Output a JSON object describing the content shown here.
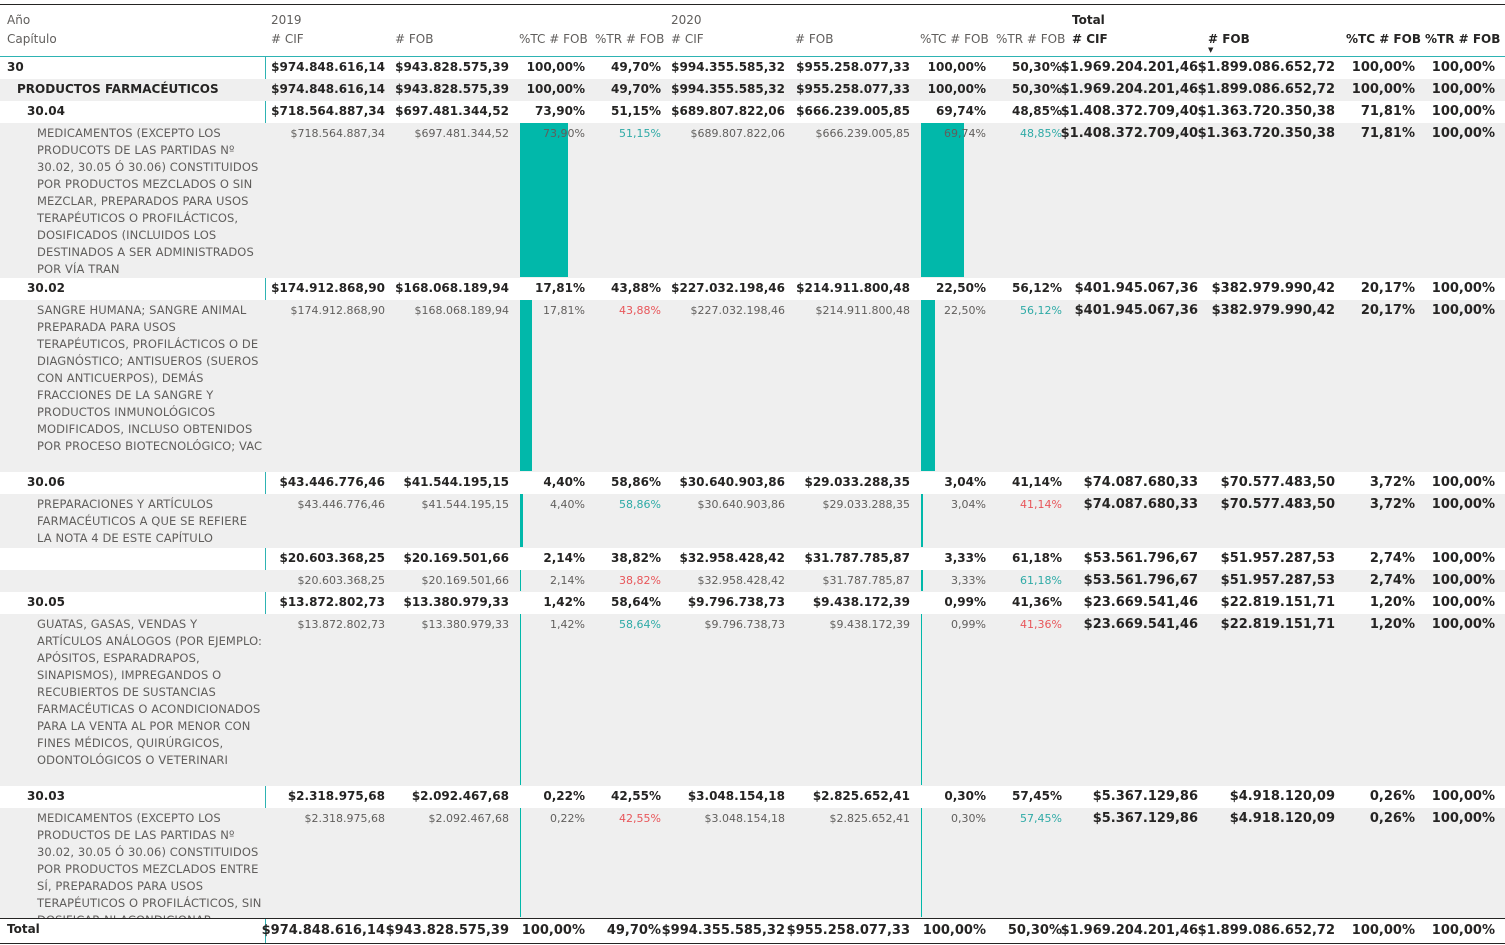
{
  "header": {
    "row_dim1": "Año",
    "row_dim2": "Capítulo",
    "groups": [
      "2019",
      "2020",
      "Total"
    ],
    "measures": [
      "# CIF",
      "# FOB",
      "%TC # FOB",
      "%TR # FOB"
    ],
    "sorted_column": "Total # FOB"
  },
  "colors": {
    "accent": "#01b8aa",
    "positive": "#2eaaa6",
    "negative": "#e8565a",
    "band": "#efefef"
  },
  "rows": [
    {
      "label": "30",
      "style": "b",
      "y2019": [
        "$974.848.616,14",
        "$943.828.575,39",
        "100,00%",
        "49,70%"
      ],
      "y2020": [
        "$994.355.585,32",
        "$955.258.077,33",
        "100,00%",
        "50,30%"
      ],
      "total": [
        "$1.969.204.201,46",
        "$1.899.086.652,72",
        "100,00%",
        "100,00%"
      ]
    },
    {
      "label": "PRODUCTOS FARMACÉUTICOS",
      "style": "b",
      "y2019": [
        "$974.848.616,14",
        "$943.828.575,39",
        "100,00%",
        "49,70%"
      ],
      "y2020": [
        "$994.355.585,32",
        "$955.258.077,33",
        "100,00%",
        "50,30%"
      ],
      "total": [
        "$1.969.204.201,46",
        "$1.899.086.652,72",
        "100,00%",
        "100,00%"
      ]
    },
    {
      "label": "30.04",
      "style": "b",
      "y2019": [
        "$718.564.887,34",
        "$697.481.344,52",
        "73,90%",
        "51,15%"
      ],
      "y2020": [
        "$689.807.822,06",
        "$666.239.005,85",
        "69,74%",
        "48,85%"
      ],
      "total": [
        "$1.408.372.709,40",
        "$1.363.720.350,38",
        "71,81%",
        "100,00%"
      ]
    },
    {
      "label": "MEDICAMENTOS (EXCEPTO LOS PRODUCOTS DE LAS PARTIDAS Nº 30.02, 30.05 Ó 30.06) CONSTITUIDOS POR PRODUCTOS MEZCLADOS O SIN MEZCLAR, PREPARADOS PARA USOS TERAPÉUTICOS O PROFILÁCTICOS, DOSIFICADOS (INCLUIDOS LOS DESTINADOS A SER ADMINISTRADOS POR VÍA TRAN",
      "style": "l",
      "tc2019_pct": 73.9,
      "tc2020_pct": 69.74,
      "y2019": [
        "$718.564.887,34",
        "$697.481.344,52",
        "73,90%",
        "51,15%"
      ],
      "y2020": [
        "$689.807.822,06",
        "$666.239.005,85",
        "69,74%",
        "48,85%"
      ],
      "total": [
        "$1.408.372.709,40",
        "$1.363.720.350,38",
        "71,81%",
        "100,00%"
      ]
    },
    {
      "label": "30.02",
      "style": "b",
      "y2019": [
        "$174.912.868,90",
        "$168.068.189,94",
        "17,81%",
        "43,88%"
      ],
      "y2020": [
        "$227.032.198,46",
        "$214.911.800,48",
        "22,50%",
        "56,12%"
      ],
      "total": [
        "$401.945.067,36",
        "$382.979.990,42",
        "20,17%",
        "100,00%"
      ]
    },
    {
      "label": "SANGRE HUMANA; SANGRE ANIMAL PREPARADA PARA USOS TERAPÉUTICOS, PROFILÁCTICOS O DE DIAGNÓSTICO; ANTISUEROS (SUEROS CON ANTICUERPOS), DEMÁS FRACCIONES DE LA SANGRE Y PRODUCTOS INMUNOLÓGICOS MODIFICADOS, INCLUSO OBTENIDOS POR PROCESO BIOTECNOLÓGICO; VAC",
      "style": "l",
      "tc2019_pct": 17.81,
      "tc2020_pct": 22.5,
      "y2019": [
        "$174.912.868,90",
        "$168.068.189,94",
        "17,81%",
        "43,88%"
      ],
      "y2020": [
        "$227.032.198,46",
        "$214.911.800,48",
        "22,50%",
        "56,12%"
      ],
      "total": [
        "$401.945.067,36",
        "$382.979.990,42",
        "20,17%",
        "100,00%"
      ]
    },
    {
      "label": "30.06",
      "style": "b",
      "y2019": [
        "$43.446.776,46",
        "$41.544.195,15",
        "4,40%",
        "58,86%"
      ],
      "y2020": [
        "$30.640.903,86",
        "$29.033.288,35",
        "3,04%",
        "41,14%"
      ],
      "total": [
        "$74.087.680,33",
        "$70.577.483,50",
        "3,72%",
        "100,00%"
      ]
    },
    {
      "label": "PREPARACIONES Y ARTÍCULOS FARMACÉUTICOS A QUE SE REFIERE LA NOTA 4 DE ESTE CAPÍTULO",
      "style": "l",
      "tc2019_pct": 4.4,
      "tc2020_pct": 3.04,
      "y2019": [
        "$43.446.776,46",
        "$41.544.195,15",
        "4,40%",
        "58,86%"
      ],
      "y2020": [
        "$30.640.903,86",
        "$29.033.288,35",
        "3,04%",
        "41,14%"
      ],
      "total": [
        "$74.087.680,33",
        "$70.577.483,50",
        "3,72%",
        "100,00%"
      ]
    },
    {
      "label": "",
      "style": "b",
      "y2019": [
        "$20.603.368,25",
        "$20.169.501,66",
        "2,14%",
        "38,82%"
      ],
      "y2020": [
        "$32.958.428,42",
        "$31.787.785,87",
        "3,33%",
        "61,18%"
      ],
      "total": [
        "$53.561.796,67",
        "$51.957.287,53",
        "2,74%",
        "100,00%"
      ]
    },
    {
      "label": "",
      "style": "l",
      "tc2019_pct": 2.14,
      "tc2020_pct": 3.33,
      "y2019": [
        "$20.603.368,25",
        "$20.169.501,66",
        "2,14%",
        "38,82%"
      ],
      "y2020": [
        "$32.958.428,42",
        "$31.787.785,87",
        "3,33%",
        "61,18%"
      ],
      "total": [
        "$53.561.796,67",
        "$51.957.287,53",
        "2,74%",
        "100,00%"
      ]
    },
    {
      "label": "30.05",
      "style": "b",
      "y2019": [
        "$13.872.802,73",
        "$13.380.979,33",
        "1,42%",
        "58,64%"
      ],
      "y2020": [
        "$9.796.738,73",
        "$9.438.172,39",
        "0,99%",
        "41,36%"
      ],
      "total": [
        "$23.669.541,46",
        "$22.819.151,71",
        "1,20%",
        "100,00%"
      ]
    },
    {
      "label": "GUATAS, GASAS, VENDAS Y ARTÍCULOS ANÁLOGOS (POR EJEMPLO: APÓSITOS, ESPARADRAPOS, SINAPISMOS), IMPREGANDOS O RECUBIERTOS DE SUSTANCIAS FARMACÉUTICAS O ACONDICIONADOS PARA LA VENTA AL POR MENOR CON FINES MÉDICOS, QUIRÚRGICOS, ODONTOLÓGICOS O VETERINARI",
      "style": "l",
      "tc2019_pct": 1.42,
      "tc2020_pct": 0.99,
      "y2019": [
        "$13.872.802,73",
        "$13.380.979,33",
        "1,42%",
        "58,64%"
      ],
      "y2020": [
        "$9.796.738,73",
        "$9.438.172,39",
        "0,99%",
        "41,36%"
      ],
      "total": [
        "$23.669.541,46",
        "$22.819.151,71",
        "1,20%",
        "100,00%"
      ]
    },
    {
      "label": "30.03",
      "style": "b",
      "y2019": [
        "$2.318.975,68",
        "$2.092.467,68",
        "0,22%",
        "42,55%"
      ],
      "y2020": [
        "$3.048.154,18",
        "$2.825.652,41",
        "0,30%",
        "57,45%"
      ],
      "total": [
        "$5.367.129,86",
        "$4.918.120,09",
        "0,26%",
        "100,00%"
      ]
    },
    {
      "label": "MEDICAMENTOS (EXCEPTO LOS PRODUCTOS DE LAS PARTIDAS Nº 30.02, 30.05 Ó 30.06) CONSTITUIDOS POR PRODUCTOS MEZCLADOS ENTRE SÍ, PREPARADOS PARA USOS TERAPÉUTICOS O PROFILÁCTICOS, SIN DOSIFICAR NI ACONDICIONAR",
      "style": "l",
      "tc2019_pct": 0.22,
      "tc2020_pct": 0.3,
      "y2019": [
        "$2.318.975,68",
        "$2.092.467,68",
        "0,22%",
        "42,55%"
      ],
      "y2020": [
        "$3.048.154,18",
        "$2.825.652,41",
        "0,30%",
        "57,45%"
      ],
      "total": [
        "$5.367.129,86",
        "$4.918.120,09",
        "0,26%",
        "100,00%"
      ]
    }
  ],
  "footer": {
    "label": "Total",
    "y2019": [
      "$974.848.616,14",
      "$943.828.575,39",
      "100,00%",
      "49,70%"
    ],
    "y2020": [
      "$994.355.585,32",
      "$955.258.077,33",
      "100,00%",
      "50,30%"
    ],
    "total": [
      "$1.969.204.201,46",
      "$1.899.086.652,72",
      "100,00%",
      "100,00%"
    ]
  }
}
